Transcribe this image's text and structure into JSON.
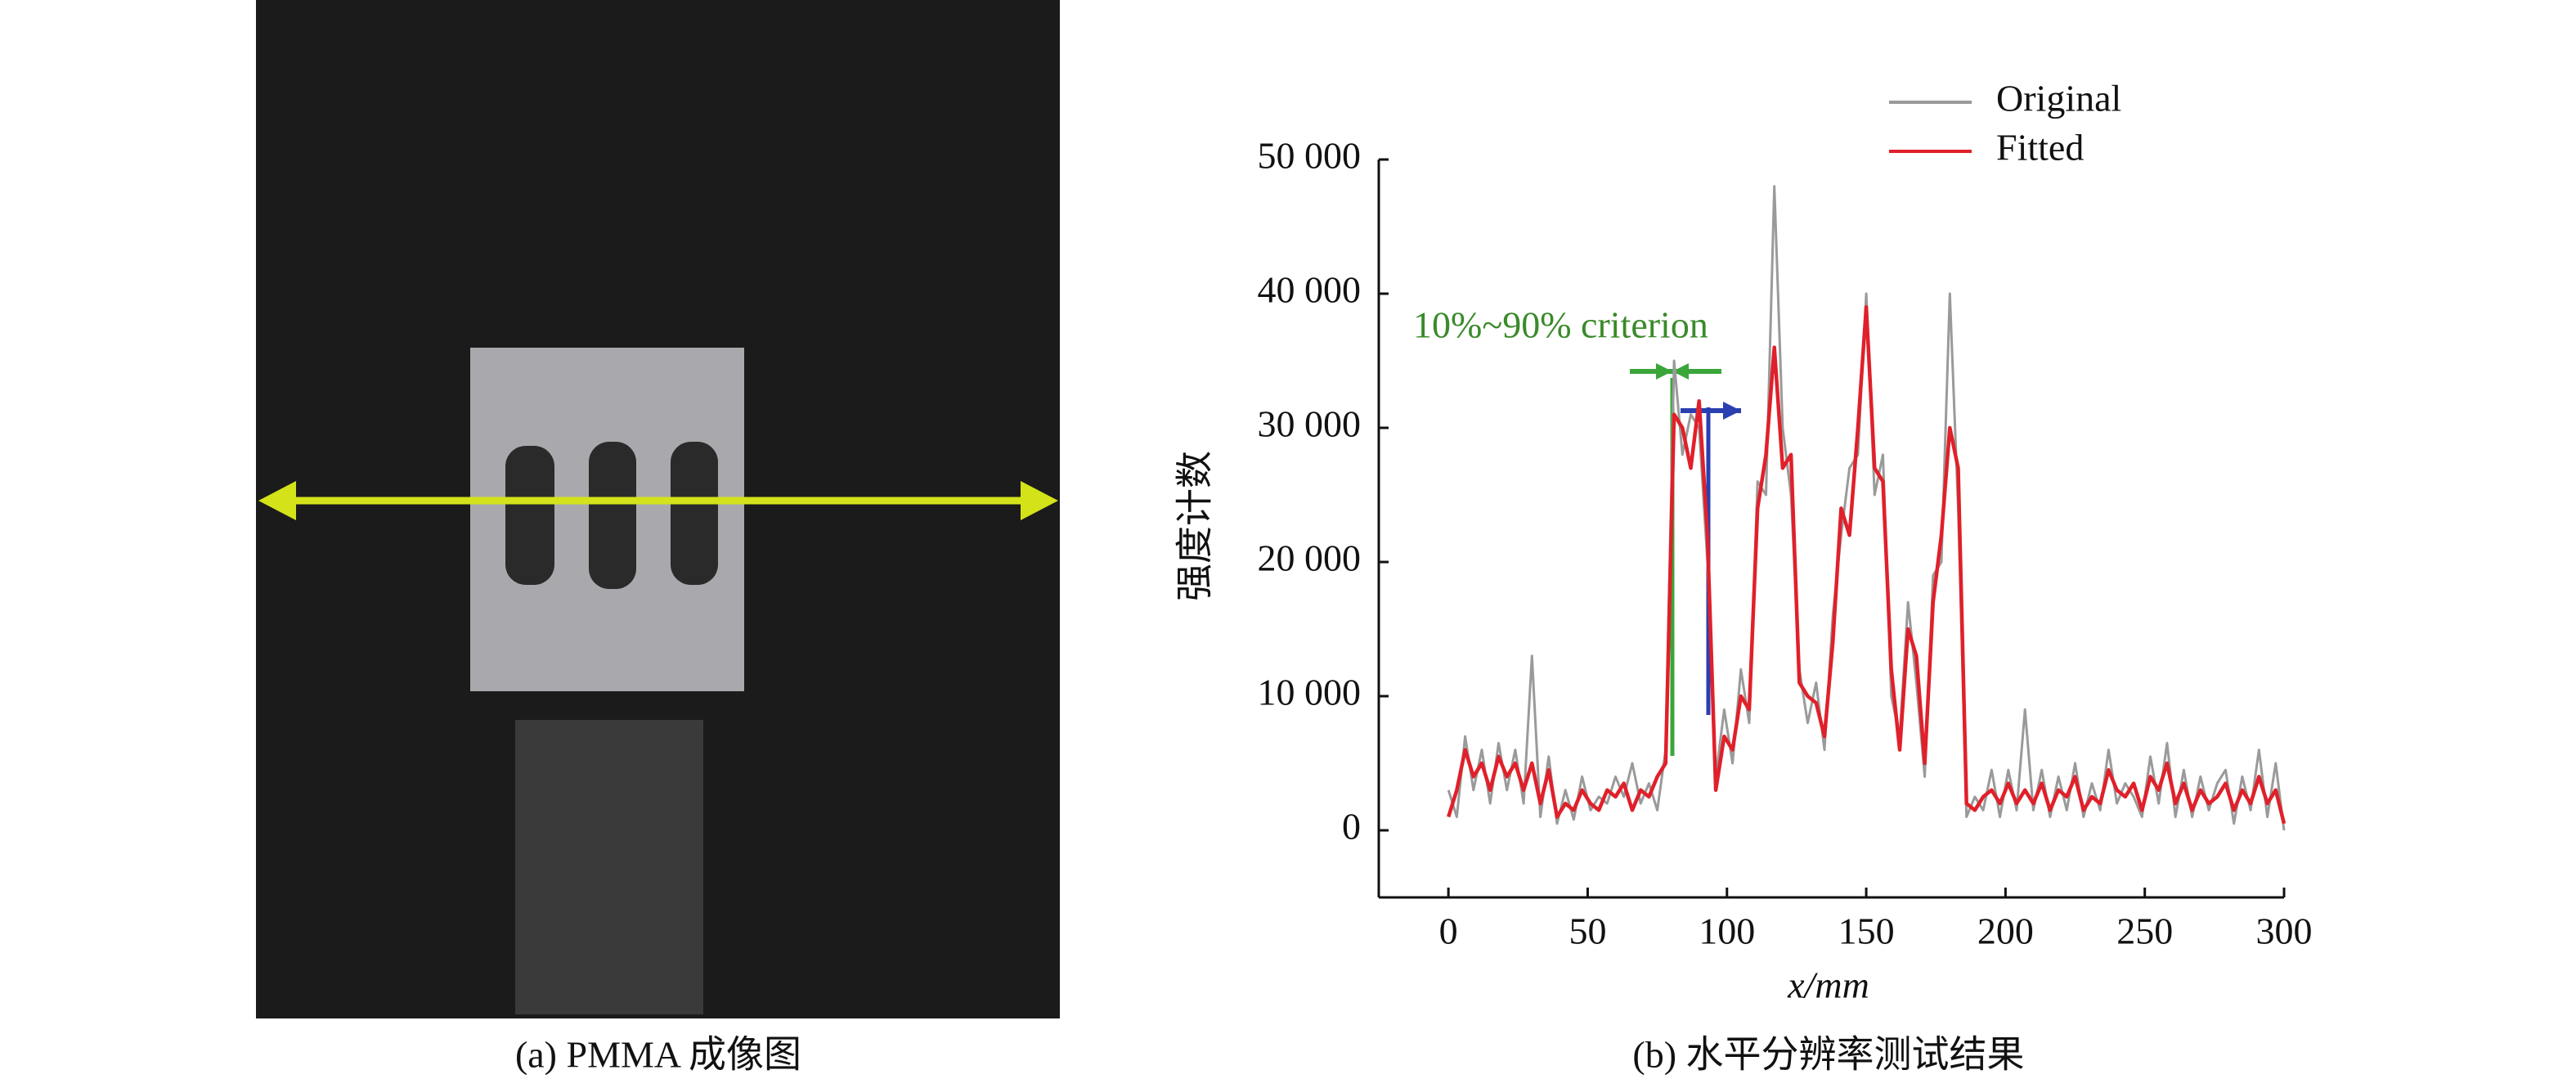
{
  "panel_a": {
    "caption": "(a) PMMA 成像图"
  },
  "chart_data": {
    "type": "line",
    "caption": "(b) 水平分辨率测试结果",
    "x_label": "x/mm",
    "y_label": "强度计数",
    "annotation": "10%~90% criterion",
    "x": [
      0,
      3,
      6,
      9,
      12,
      15,
      18,
      21,
      24,
      27,
      30,
      33,
      36,
      39,
      42,
      45,
      48,
      51,
      54,
      57,
      60,
      63,
      66,
      69,
      72,
      75,
      78,
      81,
      84,
      87,
      90,
      93,
      96,
      99,
      102,
      105,
      108,
      111,
      114,
      117,
      120,
      123,
      126,
      129,
      132,
      135,
      138,
      141,
      144,
      147,
      150,
      153,
      156,
      159,
      162,
      165,
      168,
      171,
      174,
      177,
      180,
      183,
      186,
      189,
      192,
      195,
      198,
      201,
      204,
      207,
      210,
      213,
      216,
      219,
      222,
      225,
      228,
      231,
      234,
      237,
      240,
      243,
      246,
      249,
      252,
      255,
      258,
      261,
      264,
      267,
      270,
      273,
      276,
      279,
      282,
      285,
      288,
      291,
      294,
      297,
      300
    ],
    "series": [
      {
        "name": "Original",
        "color": "#9a9a9a",
        "values": [
          3000,
          1000,
          7000,
          3000,
          6000,
          2000,
          6500,
          3000,
          6000,
          2000,
          13000,
          1000,
          5500,
          500,
          3000,
          800,
          4000,
          1500,
          2500,
          2000,
          4000,
          2500,
          5000,
          2000,
          3500,
          1500,
          6000,
          35000,
          28000,
          31000,
          30000,
          20000,
          4000,
          9000,
          5000,
          12000,
          8000,
          26000,
          25000,
          48000,
          30000,
          25000,
          12000,
          8000,
          11000,
          6000,
          16000,
          22000,
          27000,
          28000,
          40000,
          25000,
          28000,
          10000,
          7000,
          17000,
          11000,
          4000,
          19000,
          20000,
          40000,
          24000,
          1000,
          2500,
          1500,
          4500,
          1000,
          4500,
          1500,
          9000,
          1500,
          4500,
          1000,
          4000,
          1500,
          5000,
          1000,
          3500,
          1500,
          6000,
          2000,
          3500,
          2500,
          1000,
          5500,
          2000,
          6500,
          1000,
          4500,
          1000,
          4000,
          1500,
          3500,
          4500,
          500,
          4000,
          1500,
          6000,
          1000,
          5000,
          0
        ]
      },
      {
        "name": "Fitted",
        "color": "#e0202a",
        "values": [
          1000,
          3000,
          6000,
          4000,
          5000,
          3000,
          5500,
          4000,
          5000,
          3000,
          5000,
          2000,
          4500,
          1000,
          2000,
          1500,
          3000,
          2000,
          1500,
          3000,
          2500,
          3500,
          1500,
          3000,
          2500,
          4000,
          5000,
          31000,
          30000,
          27000,
          32000,
          22000,
          3000,
          7000,
          6000,
          10000,
          9000,
          24000,
          28000,
          36000,
          27000,
          28000,
          11000,
          10000,
          9500,
          7000,
          14000,
          24000,
          22000,
          30000,
          39000,
          27000,
          26000,
          12000,
          6000,
          15000,
          13000,
          5000,
          17000,
          22000,
          30000,
          27000,
          2000,
          1500,
          2500,
          3000,
          2000,
          3500,
          2000,
          3000,
          2000,
          3500,
          1500,
          3000,
          2500,
          4000,
          1500,
          2500,
          2000,
          4500,
          3000,
          2500,
          3500,
          1500,
          4000,
          3000,
          5000,
          2000,
          3500,
          1500,
          3000,
          2000,
          2500,
          3500,
          1500,
          3000,
          2000,
          4000,
          2000,
          3000,
          500
        ]
      }
    ],
    "xlim": [
      -25,
      300
    ],
    "xticks": [
      0,
      50,
      100,
      150,
      200,
      250,
      300
    ],
    "ylim": [
      -5000,
      50000
    ],
    "yticks": [
      {
        "value": 0,
        "label": "0"
      },
      {
        "value": 10000,
        "label": "10 000"
      },
      {
        "value": 20000,
        "label": "20 000"
      },
      {
        "value": 30000,
        "label": "30 000"
      },
      {
        "value": 40000,
        "label": "40 000"
      },
      {
        "value": 50000,
        "label": "50 000"
      }
    ],
    "legend": "upper right",
    "grid": false
  }
}
